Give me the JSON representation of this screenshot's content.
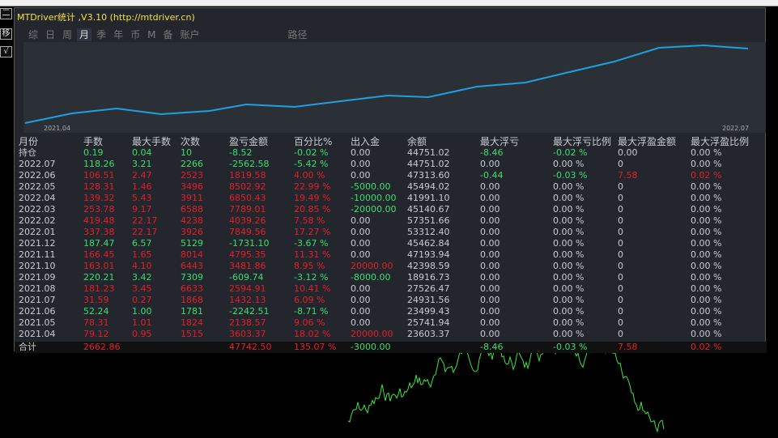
{
  "window": {
    "title": "MTDriver统计 ,V3.10 (http://mtdriver.cn)"
  },
  "left_buttons": [
    "二",
    "移",
    "√"
  ],
  "tabs": [
    {
      "label": "综"
    },
    {
      "label": "日"
    },
    {
      "label": "周"
    },
    {
      "label": "月",
      "active": true
    },
    {
      "label": "季"
    },
    {
      "label": "年"
    },
    {
      "label": "币"
    },
    {
      "label": "M"
    },
    {
      "label": "备"
    },
    {
      "label": "账户"
    },
    {
      "label": "路径"
    }
  ],
  "chart": {
    "x_start": "2021.04",
    "x_end": "2022.07",
    "line_color": "#1ea0e0"
  },
  "colors": {
    "green": "#3ddc6e",
    "red": "#e0202a",
    "text": "#c8ccd0",
    "title": "#f0e040"
  },
  "table": {
    "headers": [
      "月份",
      "手数",
      "最大手数",
      "次数",
      "盈亏金额",
      "百分比%",
      "出入金",
      "余额",
      "最大浮亏",
      "最大浮亏比例",
      "最大浮盈金额",
      "最大浮盈比例"
    ],
    "rows": [
      [
        [
          "持仓",
          "w"
        ],
        [
          "0.19",
          "g"
        ],
        [
          "0.04",
          "g"
        ],
        [
          "10",
          "g"
        ],
        [
          "-8.52",
          "g"
        ],
        [
          "-0.02 %",
          "g"
        ],
        [
          "0.00",
          "w"
        ],
        [
          "44751.02",
          "w"
        ],
        [
          "-8.46",
          "g"
        ],
        [
          "-0.02 %",
          "g"
        ],
        [
          "0.00",
          "w"
        ],
        [
          "0.00 %",
          "w"
        ]
      ],
      [
        [
          "2022.07",
          "w"
        ],
        [
          "118.26",
          "g"
        ],
        [
          "3.21",
          "g"
        ],
        [
          "2266",
          "g"
        ],
        [
          "-2562.58",
          "g"
        ],
        [
          "-5.42 %",
          "g"
        ],
        [
          "0.00",
          "w"
        ],
        [
          "44751.02",
          "w"
        ],
        [
          "0.00",
          "w"
        ],
        [
          "0.00 %",
          "w"
        ],
        [
          "0",
          "w"
        ],
        [
          "0.00 %",
          "w"
        ]
      ],
      [
        [
          "2022.06",
          "w"
        ],
        [
          "106.51",
          "r"
        ],
        [
          "2.47",
          "r"
        ],
        [
          "2523",
          "r"
        ],
        [
          "1819.58",
          "r"
        ],
        [
          "4.00 %",
          "r"
        ],
        [
          "0.00",
          "w"
        ],
        [
          "47313.60",
          "w"
        ],
        [
          "-0.44",
          "g"
        ],
        [
          "-0.03 %",
          "g"
        ],
        [
          "7.58",
          "r"
        ],
        [
          "0.02 %",
          "r"
        ]
      ],
      [
        [
          "2022.05",
          "w"
        ],
        [
          "128.31",
          "r"
        ],
        [
          "1.46",
          "r"
        ],
        [
          "3496",
          "r"
        ],
        [
          "8502.92",
          "r"
        ],
        [
          "22.99 %",
          "r"
        ],
        [
          "-5000.00",
          "g"
        ],
        [
          "45494.02",
          "w"
        ],
        [
          "0.00",
          "w"
        ],
        [
          "0.00 %",
          "w"
        ],
        [
          "0",
          "w"
        ],
        [
          "0.00 %",
          "w"
        ]
      ],
      [
        [
          "2022.04",
          "w"
        ],
        [
          "139.32",
          "r"
        ],
        [
          "5.43",
          "r"
        ],
        [
          "3911",
          "r"
        ],
        [
          "6850.43",
          "r"
        ],
        [
          "19.49 %",
          "r"
        ],
        [
          "-10000.00",
          "g"
        ],
        [
          "41991.10",
          "w"
        ],
        [
          "0.00",
          "w"
        ],
        [
          "0.00 %",
          "w"
        ],
        [
          "0",
          "w"
        ],
        [
          "0.00 %",
          "w"
        ]
      ],
      [
        [
          "2022.03",
          "w"
        ],
        [
          "253.78",
          "r"
        ],
        [
          "9.17",
          "r"
        ],
        [
          "6588",
          "r"
        ],
        [
          "7789.01",
          "r"
        ],
        [
          "20.85 %",
          "r"
        ],
        [
          "-20000.00",
          "g"
        ],
        [
          "45140.67",
          "w"
        ],
        [
          "0.00",
          "w"
        ],
        [
          "0.00 %",
          "w"
        ],
        [
          "0",
          "w"
        ],
        [
          "0.00 %",
          "w"
        ]
      ],
      [
        [
          "2022.02",
          "w"
        ],
        [
          "419.48",
          "r"
        ],
        [
          "22.17",
          "r"
        ],
        [
          "4238",
          "r"
        ],
        [
          "4039.26",
          "r"
        ],
        [
          "7.58 %",
          "r"
        ],
        [
          "0.00",
          "w"
        ],
        [
          "57351.66",
          "w"
        ],
        [
          "0.00",
          "w"
        ],
        [
          "0.00 %",
          "w"
        ],
        [
          "0",
          "w"
        ],
        [
          "0.00 %",
          "w"
        ]
      ],
      [
        [
          "2022.01",
          "w"
        ],
        [
          "337.38",
          "r"
        ],
        [
          "22.17",
          "r"
        ],
        [
          "3926",
          "r"
        ],
        [
          "7849.56",
          "r"
        ],
        [
          "17.27 %",
          "r"
        ],
        [
          "0.00",
          "w"
        ],
        [
          "53312.40",
          "w"
        ],
        [
          "0.00",
          "w"
        ],
        [
          "0.00 %",
          "w"
        ],
        [
          "0",
          "w"
        ],
        [
          "0.00 %",
          "w"
        ]
      ],
      [
        [
          "2021.12",
          "w"
        ],
        [
          "187.47",
          "g"
        ],
        [
          "6.57",
          "g"
        ],
        [
          "5129",
          "g"
        ],
        [
          "-1731.10",
          "g"
        ],
        [
          "-3.67 %",
          "g"
        ],
        [
          "0.00",
          "w"
        ],
        [
          "45462.84",
          "w"
        ],
        [
          "0.00",
          "w"
        ],
        [
          "0.00 %",
          "w"
        ],
        [
          "0",
          "w"
        ],
        [
          "0.00 %",
          "w"
        ]
      ],
      [
        [
          "2021.11",
          "w"
        ],
        [
          "166.45",
          "r"
        ],
        [
          "1.65",
          "r"
        ],
        [
          "8014",
          "r"
        ],
        [
          "4795.35",
          "r"
        ],
        [
          "11.31 %",
          "r"
        ],
        [
          "0.00",
          "w"
        ],
        [
          "47193.94",
          "w"
        ],
        [
          "0.00",
          "w"
        ],
        [
          "0.00 %",
          "w"
        ],
        [
          "0",
          "w"
        ],
        [
          "0.00 %",
          "w"
        ]
      ],
      [
        [
          "2021.10",
          "w"
        ],
        [
          "163.01",
          "r"
        ],
        [
          "4.10",
          "r"
        ],
        [
          "6443",
          "r"
        ],
        [
          "3481.86",
          "r"
        ],
        [
          "8.95 %",
          "r"
        ],
        [
          "20000.00",
          "r"
        ],
        [
          "42398.59",
          "w"
        ],
        [
          "0.00",
          "w"
        ],
        [
          "0.00 %",
          "w"
        ],
        [
          "0",
          "w"
        ],
        [
          "0.00 %",
          "w"
        ]
      ],
      [
        [
          "2021.09",
          "w"
        ],
        [
          "220.21",
          "g"
        ],
        [
          "3.42",
          "g"
        ],
        [
          "7309",
          "g"
        ],
        [
          "-609.74",
          "g"
        ],
        [
          "-3.12 %",
          "g"
        ],
        [
          "-8000.00",
          "g"
        ],
        [
          "18916.73",
          "w"
        ],
        [
          "0.00",
          "w"
        ],
        [
          "0.00 %",
          "w"
        ],
        [
          "0",
          "w"
        ],
        [
          "0.00 %",
          "w"
        ]
      ],
      [
        [
          "2021.08",
          "w"
        ],
        [
          "181.23",
          "r"
        ],
        [
          "3.45",
          "r"
        ],
        [
          "6633",
          "r"
        ],
        [
          "2594.91",
          "r"
        ],
        [
          "10.41 %",
          "r"
        ],
        [
          "0.00",
          "w"
        ],
        [
          "27526.47",
          "w"
        ],
        [
          "0.00",
          "w"
        ],
        [
          "0.00 %",
          "w"
        ],
        [
          "0",
          "w"
        ],
        [
          "0.00 %",
          "w"
        ]
      ],
      [
        [
          "2021.07",
          "w"
        ],
        [
          "31.59",
          "r"
        ],
        [
          "0.27",
          "r"
        ],
        [
          "1868",
          "r"
        ],
        [
          "1432.13",
          "r"
        ],
        [
          "6.09 %",
          "r"
        ],
        [
          "0.00",
          "w"
        ],
        [
          "24931.56",
          "w"
        ],
        [
          "0.00",
          "w"
        ],
        [
          "0.00 %",
          "w"
        ],
        [
          "0",
          "w"
        ],
        [
          "0.00 %",
          "w"
        ]
      ],
      [
        [
          "2021.06",
          "w"
        ],
        [
          "52.24",
          "g"
        ],
        [
          "1.00",
          "g"
        ],
        [
          "1781",
          "g"
        ],
        [
          "-2242.51",
          "g"
        ],
        [
          "-8.71 %",
          "g"
        ],
        [
          "0.00",
          "w"
        ],
        [
          "23499.43",
          "w"
        ],
        [
          "0.00",
          "w"
        ],
        [
          "0.00 %",
          "w"
        ],
        [
          "0",
          "w"
        ],
        [
          "0.00 %",
          "w"
        ]
      ],
      [
        [
          "2021.05",
          "w"
        ],
        [
          "78.31",
          "r"
        ],
        [
          "1.01",
          "r"
        ],
        [
          "1824",
          "r"
        ],
        [
          "2138.57",
          "r"
        ],
        [
          "9.06 %",
          "r"
        ],
        [
          "0.00",
          "w"
        ],
        [
          "25741.94",
          "w"
        ],
        [
          "0.00",
          "w"
        ],
        [
          "0.00 %",
          "w"
        ],
        [
          "0",
          "w"
        ],
        [
          "0.00 %",
          "w"
        ]
      ],
      [
        [
          "2021.04",
          "w"
        ],
        [
          "79.12",
          "r"
        ],
        [
          "0.95",
          "r"
        ],
        [
          "1515",
          "r"
        ],
        [
          "3603.37",
          "r"
        ],
        [
          "18.02 %",
          "r"
        ],
        [
          "20000.00",
          "r"
        ],
        [
          "23603.37",
          "w"
        ],
        [
          "0.00",
          "w"
        ],
        [
          "0.00 %",
          "w"
        ],
        [
          "0",
          "w"
        ],
        [
          "0.00 %",
          "w"
        ]
      ]
    ],
    "total": [
      [
        "合计",
        "w"
      ],
      [
        "2662.86",
        "r"
      ],
      [
        "",
        "w"
      ],
      [
        "",
        "w"
      ],
      [
        "47742.50",
        "r"
      ],
      [
        "135.07 %",
        "r"
      ],
      [
        "-3000.00",
        "g"
      ],
      [
        "",
        "w"
      ],
      [
        "-8.46",
        "g"
      ],
      [
        "-0.03 %",
        "g"
      ],
      [
        "7.58",
        "r"
      ],
      [
        "0.02 %",
        "r"
      ]
    ]
  }
}
